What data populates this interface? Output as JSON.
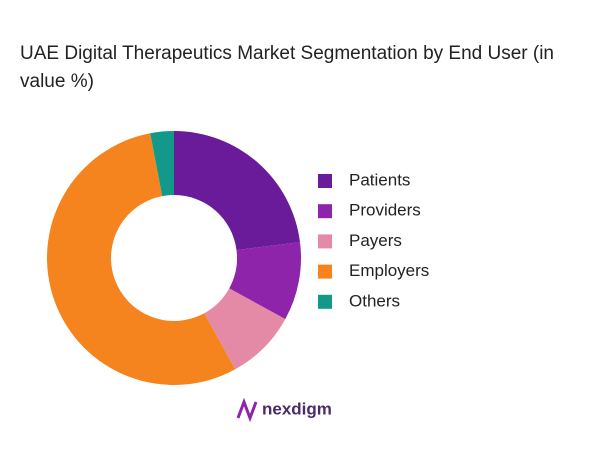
{
  "chart_data": {
    "type": "donut",
    "title": "UAE Digital Therapeutics Market Segmentation by End User (in value %)",
    "categories": [
      "Patients",
      "Providers",
      "Payers",
      "Employers",
      "Others"
    ],
    "values": [
      23,
      10,
      9,
      55,
      3
    ],
    "colors": [
      "#6a1b9a",
      "#8e24aa",
      "#e48aa6",
      "#f5841f",
      "#12998a"
    ],
    "legend": "right"
  },
  "logo": "nexdigm"
}
